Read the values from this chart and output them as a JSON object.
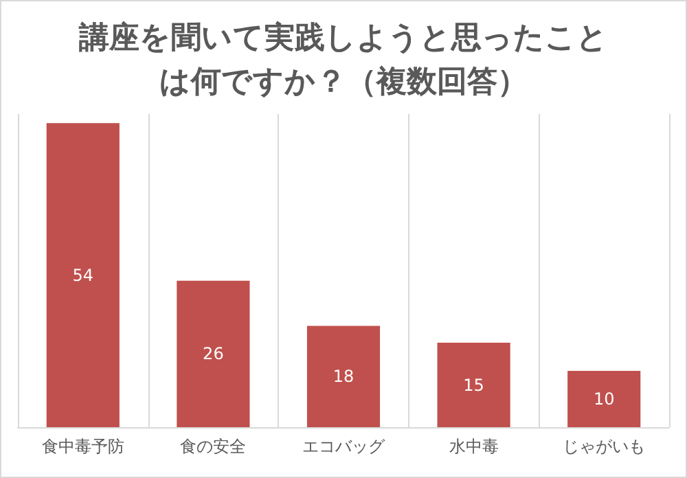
{
  "chart_data": {
    "type": "bar",
    "title": "講座を聞いて実践しようと思ったことは何ですか？（複数回答）",
    "categories": [
      "食中毒予防",
      "食の安全",
      "エコバッグ",
      "水中毒",
      "じゃがいも"
    ],
    "values": [
      54,
      26,
      18,
      15,
      10
    ],
    "color": "#c0504d",
    "data_labels": true,
    "grid": "x"
  }
}
